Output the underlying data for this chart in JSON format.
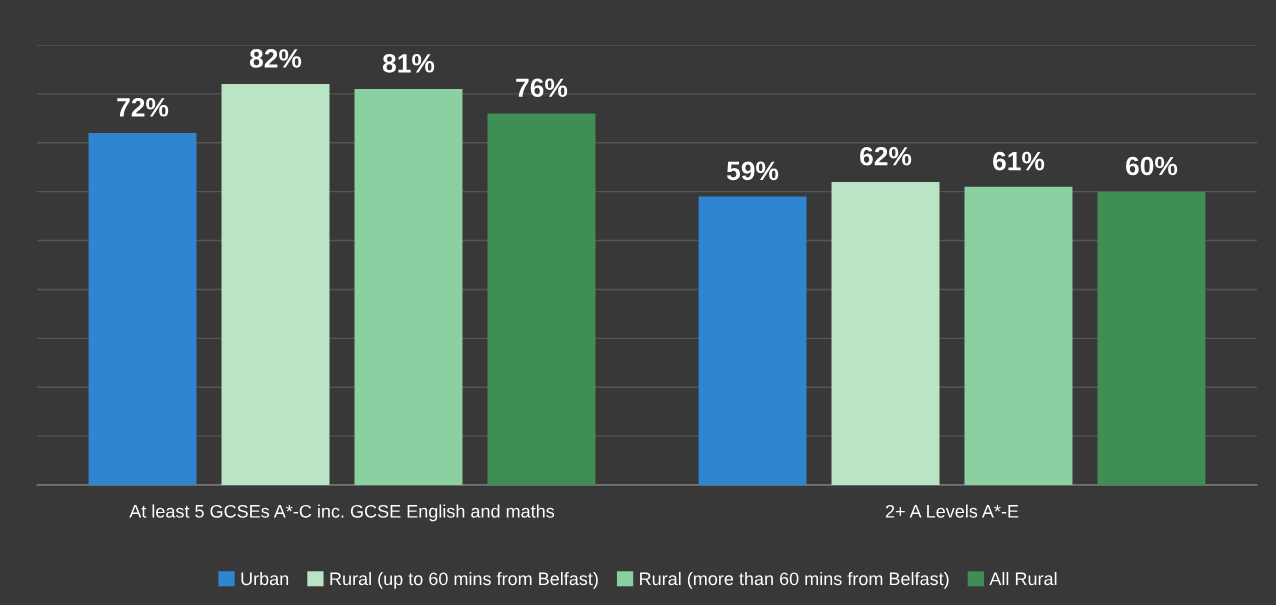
{
  "chart_data": {
    "type": "bar",
    "categories": [
      "At least 5 GCSEs A*-C inc. GCSE English and maths",
      "2+ A Levels A*-E"
    ],
    "series": [
      {
        "name": "Urban",
        "color": "#2e86d1",
        "values": [
          72,
          59
        ],
        "value_labels": [
          "72%",
          "59%"
        ]
      },
      {
        "name": "Rural (up to 60 mins from Belfast)",
        "color": "#b9e5c6",
        "values": [
          82,
          62
        ],
        "value_labels": [
          "82%",
          "62%"
        ]
      },
      {
        "name": "Rural (more than 60 mins from Belfast)",
        "color": "#8bd0a0",
        "values": [
          81,
          61
        ],
        "value_labels": [
          "81%",
          "61%"
        ]
      },
      {
        "name": "All Rural",
        "color": "#3f8f55",
        "values": [
          76,
          60
        ],
        "value_labels": [
          "76%",
          "60%"
        ]
      }
    ],
    "ylim": [
      0,
      90
    ],
    "yticks": [
      {
        "value": 0,
        "label": null
      },
      {
        "value": 10,
        "label": null
      },
      {
        "value": 20,
        "label": null
      },
      {
        "value": 30,
        "label": null
      },
      {
        "value": 40,
        "label": null
      },
      {
        "value": 50,
        "label": null
      },
      {
        "value": 60,
        "label": null
      },
      {
        "value": 70,
        "label": null
      },
      {
        "value": 80,
        "label": null
      },
      {
        "value": 90,
        "label": null
      }
    ],
    "tick_labels": "x",
    "grid": "y",
    "legend": "bottom"
  }
}
